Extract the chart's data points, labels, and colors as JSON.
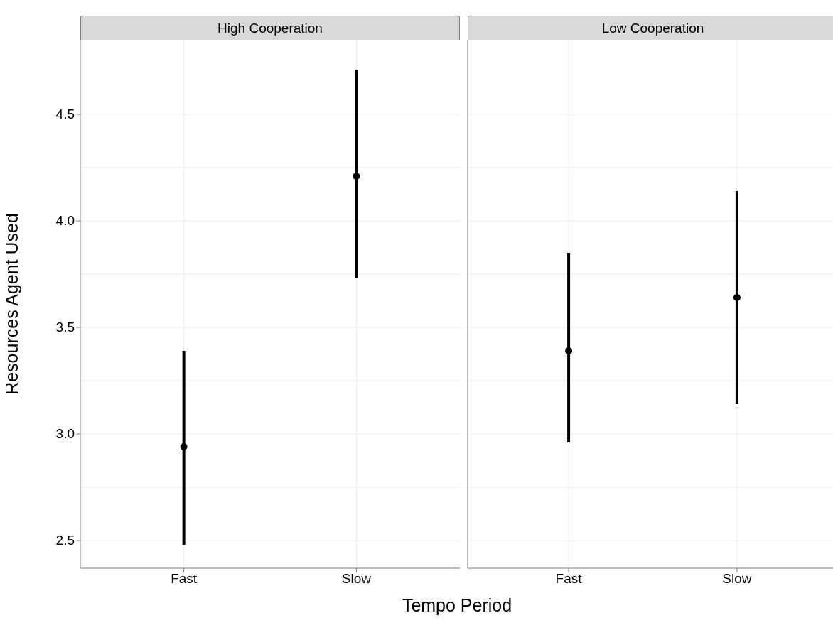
{
  "chart_data": [
    {
      "type": "scatter",
      "title": "High Cooperation",
      "xlabel": "Tempo Period",
      "ylabel": "Resources Agent Used",
      "categories": [
        "Fast",
        "Slow"
      ],
      "values": [
        2.94,
        4.21
      ],
      "errors": [
        [
          2.48,
          3.39
        ],
        [
          3.73,
          4.71
        ]
      ],
      "color": "#000000",
      "marker": "circle",
      "ylim": [
        2.37,
        4.85
      ],
      "yticks": [
        2.5,
        {
          "value": 3,
          "label": "3.0"
        },
        3.5,
        {
          "value": 4,
          "label": "4.0"
        },
        4.5
      ],
      "grid": true
    },
    {
      "type": "scatter",
      "title": "Low Cooperation",
      "categories": [
        "Fast",
        "Slow"
      ],
      "values": [
        3.39,
        3.64
      ],
      "errors": [
        [
          2.96,
          3.85
        ],
        [
          3.14,
          4.14
        ]
      ],
      "color": "#000000",
      "marker": "circle",
      "ylim": [
        2.37,
        4.85
      ],
      "yticks": [
        2.5,
        3,
        3.5,
        4,
        4.5
      ],
      "grid": true,
      "tick_labels": "x"
    }
  ]
}
